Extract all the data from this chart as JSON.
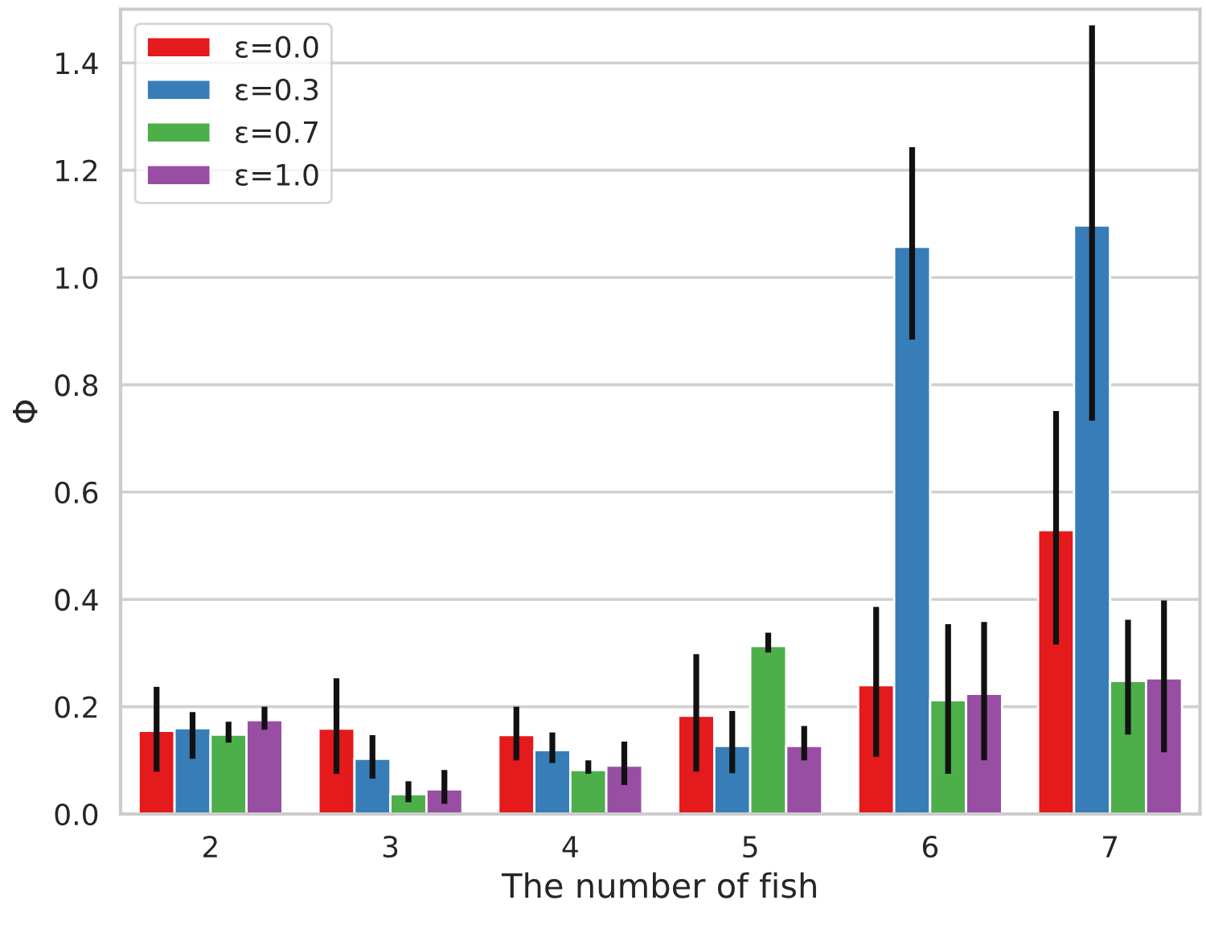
{
  "chart_data": {
    "type": "bar",
    "xlabel": "The number of fish",
    "ylabel": "Φ",
    "categories": [
      "2",
      "3",
      "4",
      "5",
      "6",
      "7"
    ],
    "ylim": [
      0,
      1.5
    ],
    "yticks": [
      {
        "value": 0,
        "label": "0.0"
      },
      0.2,
      0.4,
      0.6,
      0.8,
      {
        "value": 1,
        "label": "1.0"
      },
      1.2,
      1.4
    ],
    "grid": "y",
    "legend": "top left",
    "series": [
      {
        "name": "ε=0.0",
        "color": "#e41a1c",
        "values": [
          0.155,
          0.159,
          0.147,
          0.183,
          0.24,
          0.529
        ],
        "errors": [
          [
            0.079,
            0.237
          ],
          [
            0.075,
            0.253
          ],
          [
            0.1,
            0.2
          ],
          [
            0.079,
            0.298
          ],
          [
            0.107,
            0.386
          ],
          [
            0.316,
            0.751
          ]
        ]
      },
      {
        "name": "ε=0.3",
        "color": "#377eb8",
        "values": [
          0.16,
          0.103,
          0.119,
          0.127,
          1.057,
          1.097
        ],
        "errors": [
          [
            0.103,
            0.19
          ],
          [
            0.066,
            0.147
          ],
          [
            0.095,
            0.152
          ],
          [
            0.076,
            0.192
          ],
          [
            0.884,
            1.243
          ],
          [
            0.733,
            1.47
          ]
        ]
      },
      {
        "name": "ε=0.7",
        "color": "#4daf4a",
        "values": [
          0.148,
          0.037,
          0.082,
          0.313,
          0.212,
          0.248
        ],
        "errors": [
          [
            0.133,
            0.172
          ],
          [
            0.022,
            0.061
          ],
          [
            0.075,
            0.1
          ],
          [
            0.301,
            0.338
          ],
          [
            0.075,
            0.354
          ],
          [
            0.148,
            0.362
          ]
        ]
      },
      {
        "name": "ε=1.0",
        "color": "#984ea3",
        "values": [
          0.175,
          0.046,
          0.09,
          0.127,
          0.224,
          0.253
        ],
        "errors": [
          [
            0.157,
            0.2
          ],
          [
            0.019,
            0.082
          ],
          [
            0.054,
            0.135
          ],
          [
            0.1,
            0.164
          ],
          [
            0.1,
            0.358
          ],
          [
            0.115,
            0.398
          ]
        ]
      }
    ]
  }
}
